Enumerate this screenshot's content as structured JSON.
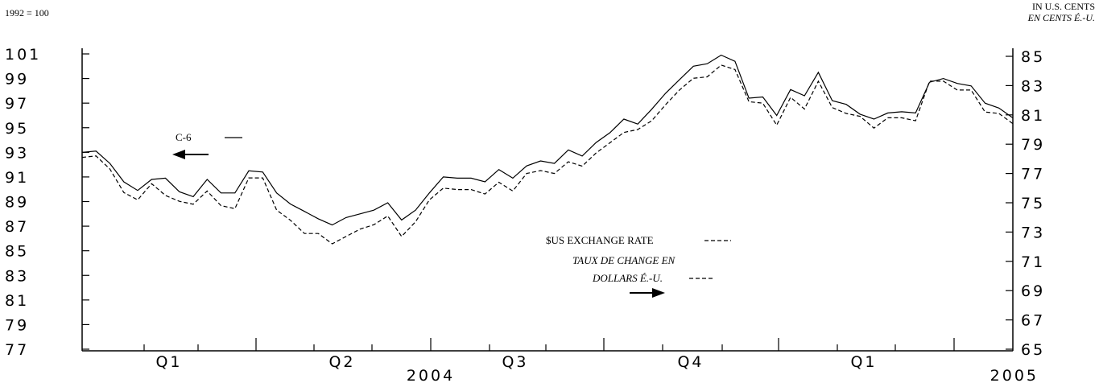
{
  "chart_data": {
    "type": "line",
    "left_axis": {
      "unit_label": "1992 = 100",
      "range": [
        77,
        101
      ],
      "ticks": [
        "101",
        "99",
        "97",
        "95",
        "93",
        "91",
        "89",
        "87",
        "85",
        "83",
        "81",
        "79",
        "77"
      ]
    },
    "right_axis": {
      "unit_label_line1": "IN U.S. CENTS",
      "unit_label_line2": "EN CENTS É.-U.",
      "range": [
        65,
        85
      ],
      "ticks": [
        "85",
        "83",
        "81",
        "79",
        "77",
        "75",
        "73",
        "71",
        "69",
        "67",
        "65"
      ]
    },
    "x_axis": {
      "quarter_labels": [
        "Q1",
        "Q2",
        "Q3",
        "Q4",
        "Q1"
      ],
      "year_labels": [
        "2004",
        "2005"
      ],
      "n_points": 68
    },
    "legend": {
      "c6_label": "C-6",
      "exchange_label_en": "$US EXCHANGE RATE",
      "exchange_label_fr_line1": "TAUX DE CHANGE EN",
      "exchange_label_fr_line2": "DOLLARS É.-U."
    },
    "series": [
      {
        "name": "C-6",
        "axis": "left",
        "style": "solid",
        "values": [
          93.0,
          93.1,
          92.1,
          90.6,
          89.9,
          90.8,
          90.9,
          89.8,
          89.4,
          90.8,
          89.7,
          89.7,
          91.5,
          91.4,
          89.7,
          88.8,
          88.2,
          87.6,
          87.1,
          87.7,
          88.0,
          88.3,
          88.9,
          87.5,
          88.3,
          89.7,
          91.0,
          90.9,
          90.9,
          90.6,
          91.6,
          90.9,
          91.9,
          92.3,
          92.1,
          93.2,
          92.7,
          93.8,
          94.6,
          95.7,
          95.3,
          96.5,
          97.8,
          98.9,
          100.0,
          100.2,
          100.9,
          100.4,
          97.4,
          97.5,
          96.0,
          98.1,
          97.6,
          99.5,
          97.2,
          96.9,
          96.1,
          95.7,
          96.2,
          96.3,
          96.2,
          98.7,
          99.0,
          98.6,
          98.4,
          97.0,
          96.6,
          95.8
        ]
      },
      {
        "name": "$US EXCHANGE RATE",
        "axis": "right",
        "style": "dashed",
        "values": [
          78.1,
          78.2,
          77.3,
          75.7,
          75.2,
          76.3,
          75.5,
          75.1,
          74.9,
          75.8,
          74.8,
          74.6,
          76.7,
          76.7,
          74.5,
          73.8,
          72.9,
          72.9,
          72.2,
          72.7,
          73.2,
          73.5,
          74.1,
          72.7,
          73.7,
          75.2,
          76.0,
          75.9,
          75.9,
          75.6,
          76.4,
          75.8,
          77.0,
          77.2,
          77.0,
          77.8,
          77.5,
          78.4,
          79.1,
          79.8,
          80.0,
          80.6,
          81.7,
          82.7,
          83.5,
          83.6,
          84.4,
          84.1,
          81.9,
          81.8,
          80.3,
          82.2,
          81.4,
          83.3,
          81.5,
          81.1,
          80.9,
          80.1,
          80.8,
          80.8,
          80.6,
          83.3,
          83.3,
          82.7,
          82.7,
          81.2,
          81.1,
          80.4
        ]
      }
    ]
  }
}
